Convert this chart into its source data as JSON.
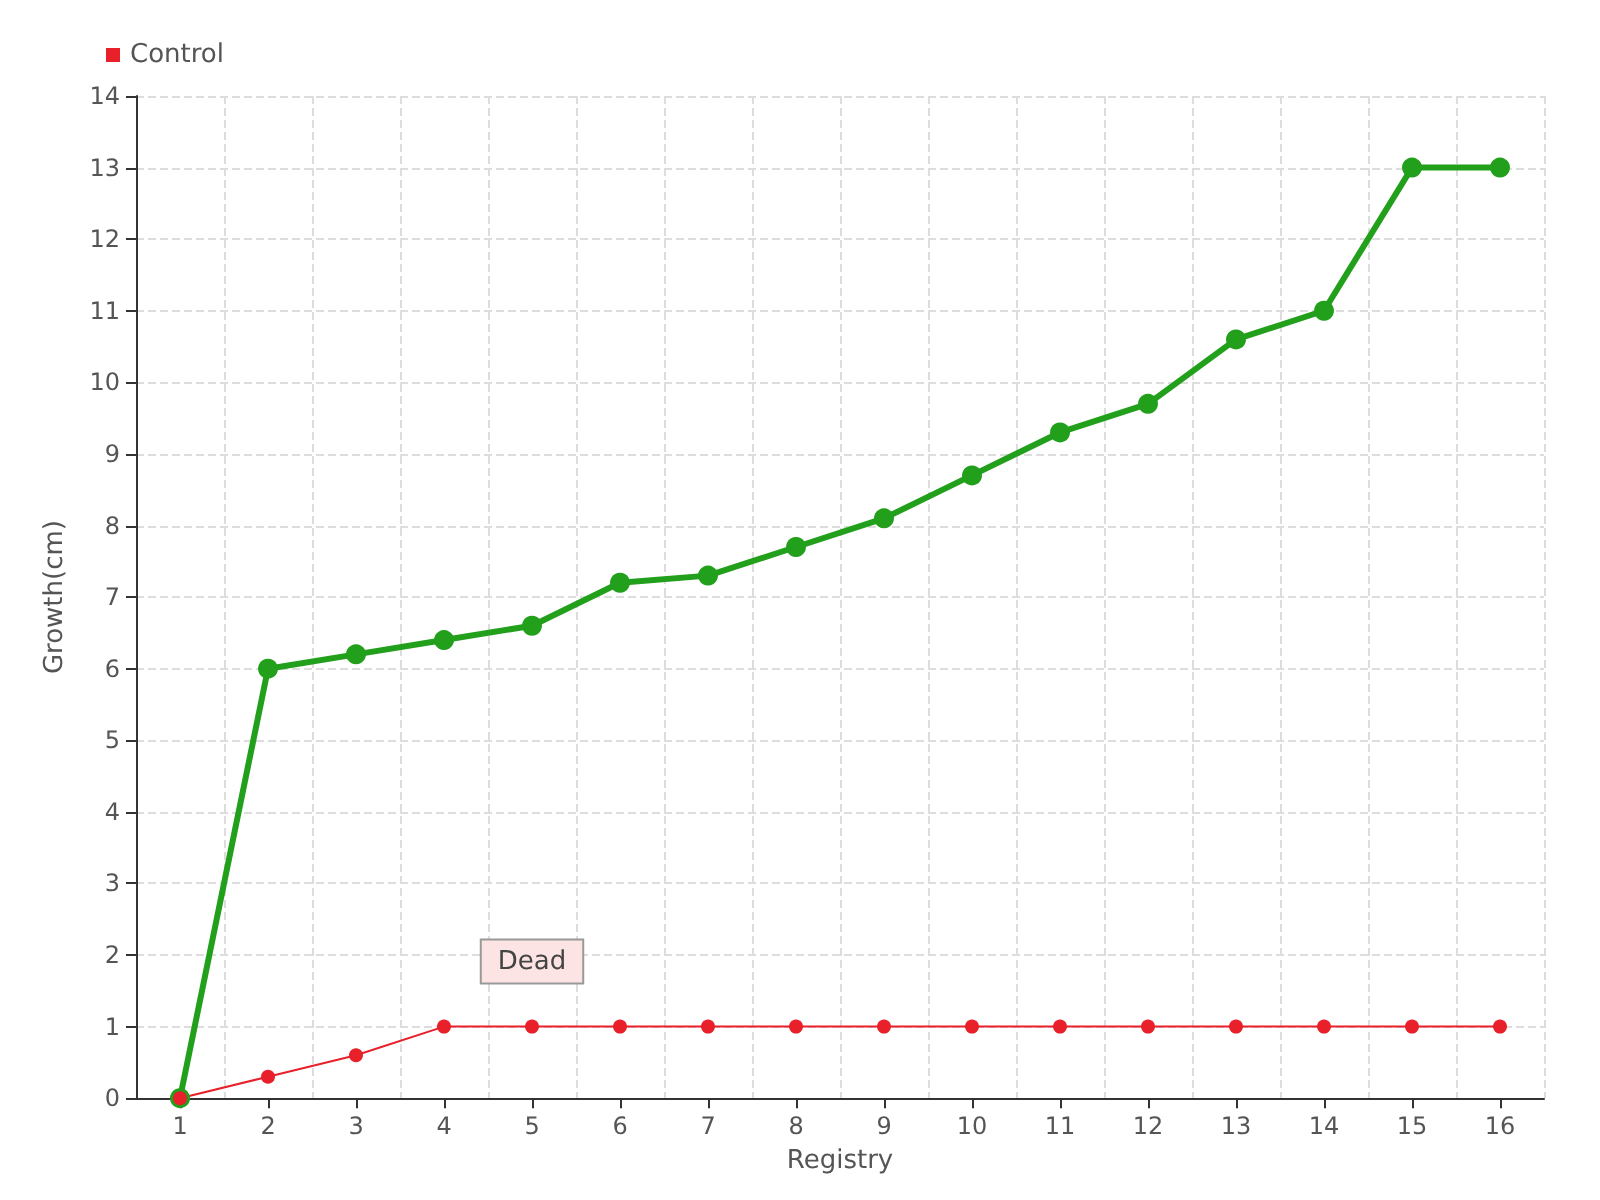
{
  "chart_data": {
    "type": "line",
    "xlabel": "Registry",
    "ylabel": "Growth(cm)",
    "categories": [
      "1",
      "2",
      "3",
      "4",
      "5",
      "6",
      "7",
      "8",
      "9",
      "10",
      "11",
      "12",
      "13",
      "14",
      "15",
      "16"
    ],
    "series": [
      {
        "color": "#22a01c",
        "values": [
          0,
          6,
          6.2,
          6.4,
          6.6,
          7.2,
          7.3,
          7.7,
          8.1,
          8.7,
          9.3,
          9.7,
          10.6,
          11,
          13,
          13
        ]
      },
      {
        "name": "Control",
        "color": "#e8202a",
        "values": [
          0,
          0.3,
          0.6,
          1,
          1,
          1,
          1,
          1,
          1,
          1,
          1,
          1,
          1,
          1,
          1,
          1
        ]
      }
    ],
    "ylim": [
      0,
      14
    ],
    "yticks": [
      0,
      1,
      2,
      3,
      4,
      5,
      6,
      7,
      8,
      9,
      10,
      11,
      12,
      13,
      14
    ],
    "grid": true,
    "legend": "top left",
    "marker": "circle",
    "line_style": "solid",
    "annotations": [
      {
        "text": "Dead",
        "x": "5",
        "y": 1
      }
    ]
  }
}
